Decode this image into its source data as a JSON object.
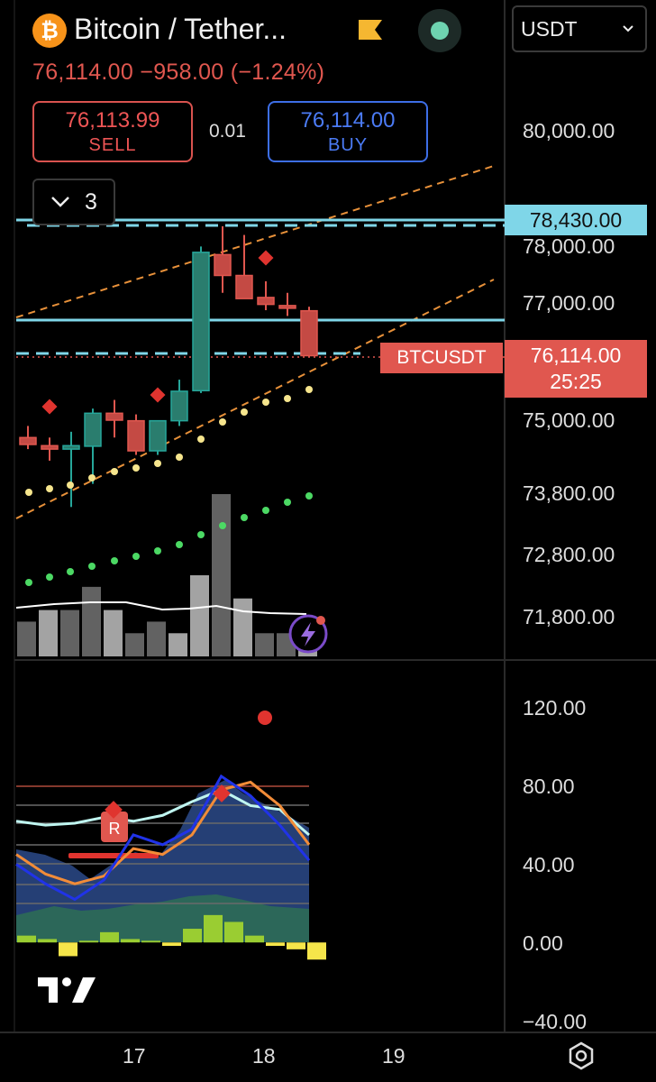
{
  "header": {
    "title": "Bitcoin / Tether...",
    "price_line": "76,114.00  −958.00 (−1.24%)",
    "currency": "USDT"
  },
  "trade": {
    "sell_price": "76,113.99",
    "sell_label": "SELL",
    "buy_price": "76,114.00",
    "buy_label": "BUY",
    "spread": "0.01"
  },
  "indicators": {
    "count": "3"
  },
  "price_axis": {
    "labels": [
      "80,000.00",
      "78,000.00",
      "77,000.00",
      "75,000.00",
      "73,800.00",
      "72,800.00",
      "71,800.00"
    ],
    "highlight_blue": "78,430.00",
    "current_price": "76,114.00",
    "countdown": "25:25",
    "symbol": "BTCUSDT"
  },
  "oscillator_axis": {
    "labels": [
      "120.00",
      "80.00",
      "40.00",
      "0.00",
      "−40.00"
    ]
  },
  "time_axis": {
    "labels": [
      "17",
      "18",
      "19"
    ]
  },
  "colors": {
    "bull": "#26a69a",
    "bear": "#e0574f",
    "level_line": "#7fd6e8",
    "volume_bar": "#777777"
  },
  "icons": [
    "bitcoin-logo-icon",
    "flag-icon",
    "status-dot-icon",
    "chevron-down-icon",
    "lightning-icon",
    "settings-icon",
    "tradingview-logo-icon"
  ],
  "chart_data": {
    "type": "candlestick",
    "candles": [
      {
        "o": 74700,
        "h": 74900,
        "l": 74500,
        "c": 74580
      },
      {
        "o": 74560,
        "h": 74700,
        "l": 74300,
        "c": 74500
      },
      {
        "o": 74500,
        "h": 74800,
        "l": 73500,
        "c": 74560
      },
      {
        "o": 74550,
        "h": 75200,
        "l": 73900,
        "c": 75120
      },
      {
        "o": 75120,
        "h": 75350,
        "l": 74700,
        "c": 75000
      },
      {
        "o": 74990,
        "h": 75100,
        "l": 74400,
        "c": 74470
      },
      {
        "o": 74470,
        "h": 75000,
        "l": 74400,
        "c": 74990
      },
      {
        "o": 74990,
        "h": 75700,
        "l": 74900,
        "c": 75500
      },
      {
        "o": 75510,
        "h": 78000,
        "l": 75470,
        "c": 77900
      },
      {
        "o": 77860,
        "h": 78350,
        "l": 77200,
        "c": 77500
      },
      {
        "o": 77500,
        "h": 78200,
        "l": 77100,
        "c": 77100
      },
      {
        "o": 77120,
        "h": 77400,
        "l": 76900,
        "c": 77000
      },
      {
        "o": 76980,
        "h": 77200,
        "l": 76800,
        "c": 76960
      },
      {
        "o": 76890,
        "h": 76960,
        "l": 76100,
        "c": 76114
      }
    ],
    "volume": [
      3,
      4,
      4,
      6,
      4,
      2,
      3,
      2,
      7,
      14,
      5,
      2,
      2,
      1
    ],
    "oscillator": {
      "blue": [
        40,
        30,
        22,
        32,
        55,
        50,
        58,
        85,
        75,
        60,
        42
      ],
      "orange": [
        45,
        35,
        30,
        34,
        48,
        45,
        55,
        78,
        82,
        70,
        50
      ],
      "white": [
        62,
        60,
        61,
        64,
        62,
        65,
        72,
        78,
        70,
        68,
        55
      ]
    }
  }
}
